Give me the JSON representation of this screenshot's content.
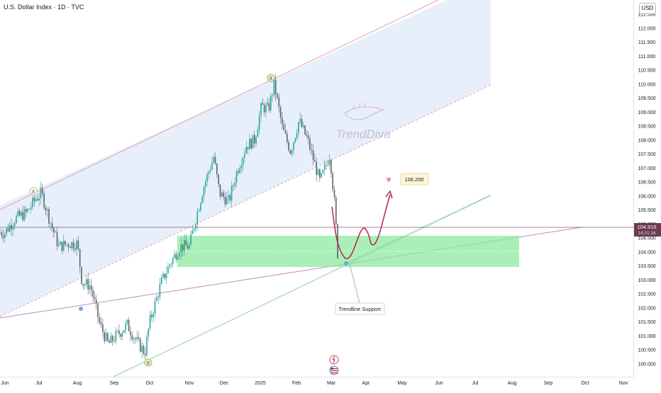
{
  "header": {
    "title": "U.S. Dollar Index · 1D · TVC",
    "currency": "USD"
  },
  "annotations": {
    "target_label": "106.200",
    "trendline_label": "Trendline Support",
    "watermark": "TrendDiva"
  },
  "colors": {
    "up_candle": "#26a69a",
    "down_candle": "#5d606b",
    "channel_line": "#e8a0b4",
    "support_zone": "#8ee8a0",
    "projection": "#b4234e",
    "current_price_bg": "#6b3b50"
  },
  "chart_data": {
    "type": "candlestick",
    "title": "U.S. Dollar Index · 1D · TVC",
    "timeframe": "1D",
    "x_ticks": [
      "Jun",
      "Jul",
      "Aug",
      "Sep",
      "Oct",
      "Nov",
      "Dec",
      "2025",
      "Feb",
      "Mar",
      "Apr",
      "May",
      "Jun",
      "Jul",
      "Aug",
      "Sep",
      "Oct",
      "Nov"
    ],
    "y_ticks": [
      "112.500",
      "112.000",
      "111.500",
      "111.000",
      "110.500",
      "110.000",
      "109.500",
      "109.000",
      "108.500",
      "108.000",
      "107.500",
      "107.000",
      "106.500",
      "106.000",
      "105.500",
      "105.000",
      "104.500",
      "104.000",
      "103.500",
      "103.000",
      "102.500",
      "102.000",
      "101.500",
      "101.000",
      "100.500",
      "100.000"
    ],
    "ylim": [
      99.5,
      112.8
    ],
    "current_price": "104.916",
    "current_countdown": "14:21:16",
    "close_path": [
      [
        "2024-06-01",
        104.7
      ],
      [
        "2024-06-10",
        105.2
      ],
      [
        "2024-06-20",
        105.4
      ],
      [
        "2024-06-28",
        105.9
      ],
      [
        "2024-07-03",
        106.1
      ],
      [
        "2024-07-10",
        105.1
      ],
      [
        "2024-07-17",
        104.2
      ],
      [
        "2024-07-25",
        104.3
      ],
      [
        "2024-08-01",
        104.3
      ],
      [
        "2024-08-05",
        102.9
      ],
      [
        "2024-08-12",
        102.8
      ],
      [
        "2024-08-20",
        101.4
      ],
      [
        "2024-08-27",
        100.7
      ],
      [
        "2024-09-05",
        101.1
      ],
      [
        "2024-09-12",
        101.4
      ],
      [
        "2024-09-20",
        100.8
      ],
      [
        "2024-09-27",
        100.4
      ],
      [
        "2024-10-01",
        101.5
      ],
      [
        "2024-10-10",
        102.9
      ],
      [
        "2024-10-17",
        103.6
      ],
      [
        "2024-10-25",
        104.2
      ],
      [
        "2024-11-01",
        104.2
      ],
      [
        "2024-11-06",
        105.1
      ],
      [
        "2024-11-13",
        106.3
      ],
      [
        "2024-11-22",
        107.4
      ],
      [
        "2024-11-27",
        106.1
      ],
      [
        "2024-12-05",
        105.8
      ],
      [
        "2024-12-12",
        106.9
      ],
      [
        "2024-12-20",
        107.8
      ],
      [
        "2024-12-27",
        108.0
      ],
      [
        "2025-01-02",
        109.2
      ],
      [
        "2025-01-08",
        109.1
      ],
      [
        "2025-01-13",
        110.0
      ],
      [
        "2025-01-20",
        108.4
      ],
      [
        "2025-01-27",
        107.6
      ],
      [
        "2025-02-03",
        108.7
      ],
      [
        "2025-02-10",
        108.0
      ],
      [
        "2025-02-20",
        106.5
      ],
      [
        "2025-02-28",
        107.5
      ],
      [
        "2025-03-04",
        105.7
      ],
      [
        "2025-03-07",
        103.8
      ]
    ],
    "projection": {
      "target": "106.200",
      "path_note": "dip to ~104.0, bounce to ~104.9, dip to ~104.3, rally to 106.200"
    },
    "support_zone": {
      "y_low": 103.5,
      "y_high": 104.5,
      "x_from": "2024-10-25",
      "x_to": "2025-07-31"
    },
    "pivots": [
      {
        "label": "X",
        "x": "2024-07-01",
        "y": 106.2
      },
      {
        "label": "X",
        "x": "2025-01-13",
        "y": 110.2
      },
      {
        "label": "X",
        "x": "2024-09-27",
        "y": 100.0
      }
    ],
    "grid": false,
    "legend": "none"
  }
}
